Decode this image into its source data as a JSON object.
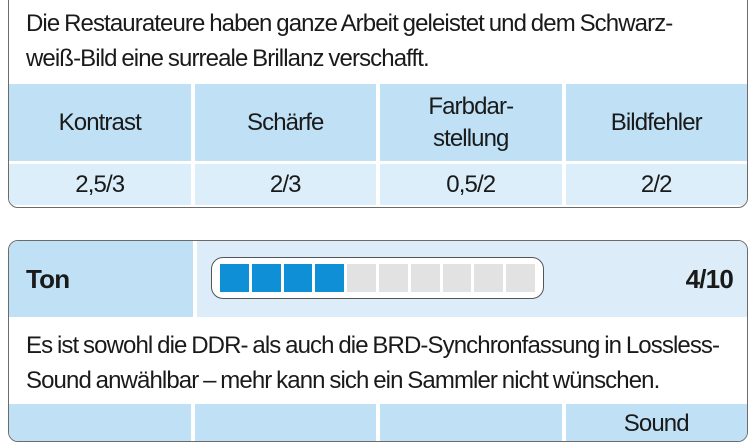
{
  "bild": {
    "text": "Die Restaurateure haben ganze Arbeit geleistet und dem Schwarz-weiß-Bild eine surreale Brillanz verschafft.",
    "text_line1": "Die Restaurateure haben ganze Arbeit geleistet und dem Schwarz-",
    "text_line2": "weiß-Bild eine surreale Brillanz verschafft.",
    "headers": [
      "Kontrast",
      "Schärfe",
      "Farbdar-\nstellung",
      "Bildfehler"
    ],
    "values": [
      "2,5/3",
      "2/3",
      "0,5/2",
      "2/2"
    ]
  },
  "ton": {
    "label": "Ton",
    "score": "4/10",
    "rating": 4,
    "rating_max": 10,
    "bar_color": "#0f8fd6",
    "text_line1": "Es ist sowohl die DDR- als auch die BRD-Synchronfassung in Lossless-",
    "text_line2": "Sound anwählbar – mehr kann sich ein Sammler nicht wünschen.",
    "headers_partial": [
      "",
      "",
      "",
      "Sound"
    ]
  }
}
